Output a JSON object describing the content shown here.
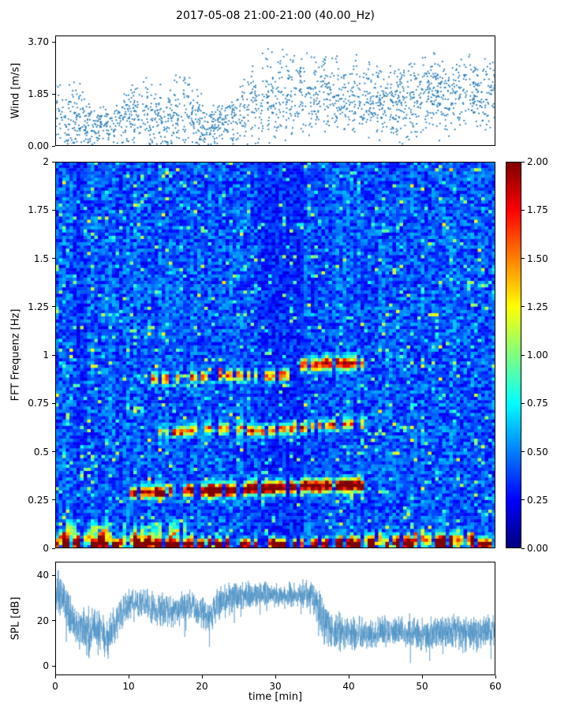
{
  "title": "2017-05-08 21:00-21:00 (40.00_Hz)",
  "chart_data": [
    {
      "type": "scatter",
      "name": "wind",
      "ylabel": "Wind [m/s]",
      "ylim": [
        0,
        3.93
      ],
      "xlim": [
        0,
        60
      ],
      "yticks": {
        "values": [
          0,
          1.85,
          3.7
        ],
        "labels": [
          "0.00",
          "1.85",
          "3.70"
        ]
      },
      "marker_color": "#1f77b4",
      "n_points": 1900,
      "trend": {
        "x": [
          0,
          3,
          6,
          9,
          12,
          15,
          18,
          21,
          24,
          27,
          30,
          33,
          36,
          39,
          42,
          45,
          48,
          51,
          54,
          57,
          60
        ],
        "mean": [
          1.1,
          1.0,
          0.7,
          0.8,
          1.3,
          1.0,
          1.2,
          0.7,
          0.8,
          1.5,
          1.8,
          1.9,
          2.0,
          1.8,
          1.7,
          1.5,
          1.6,
          1.8,
          1.7,
          1.9,
          1.8
        ],
        "spread": [
          0.8,
          0.9,
          0.5,
          0.6,
          1.0,
          0.8,
          1.1,
          0.5,
          0.6,
          1.1,
          1.2,
          1.1,
          1.0,
          1.0,
          1.0,
          0.9,
          1.0,
          1.0,
          1.0,
          1.0,
          1.0
        ]
      }
    },
    {
      "type": "heatmap",
      "name": "spectrogram",
      "ylabel": "FFT Frequenz [Hz]",
      "ylim": [
        0,
        2
      ],
      "xlim": [
        0,
        60
      ],
      "yticks": {
        "values": [
          0,
          0.25,
          0.5,
          0.75,
          1,
          1.25,
          1.5,
          1.75,
          2
        ],
        "labels": [
          "0",
          "0.25",
          "0.5",
          "0.75",
          "1",
          "1.25",
          "1.5",
          "1.75",
          "2"
        ]
      },
      "colormap": "jet",
      "value_range": [
        0,
        2
      ],
      "background": {
        "base": 0.22,
        "noise": 0.38,
        "speckle_chance": 0.055,
        "speckle_boost": 0.45
      },
      "dark_columns": [
        {
          "t": [
            27.5,
            34
          ],
          "factor": 0.78
        },
        {
          "t": [
            2.5,
            4.5
          ],
          "factor": 0.87
        }
      ],
      "bands": [
        {
          "t": [
            0,
            60
          ],
          "f": [
            0.02,
            0.02
          ],
          "amp": 1.9,
          "width": 0.02,
          "patchiness": 0.45
        },
        {
          "t": [
            0,
            13
          ],
          "f": [
            0.05,
            0.05
          ],
          "amp": 1.1,
          "width": 0.022,
          "patchiness": 0.4
        },
        {
          "t": [
            38,
            57
          ],
          "f": [
            0.035,
            0.05
          ],
          "amp": 1.1,
          "width": 0.022,
          "patchiness": 0.45
        },
        {
          "t": [
            0,
            18
          ],
          "f": [
            0.09,
            0.09
          ],
          "amp": 0.7,
          "width": 0.03,
          "patchiness": 0.5
        },
        {
          "t": [
            10,
            22
          ],
          "f": [
            0.285,
            0.3
          ],
          "amp": 1.8,
          "width": 0.02,
          "patchiness": 0.25
        },
        {
          "t": [
            21,
            42
          ],
          "f": [
            0.3,
            0.33
          ],
          "amp": 2.0,
          "width": 0.022,
          "patchiness": 0.08
        },
        {
          "t": [
            14,
            26
          ],
          "f": [
            0.6,
            0.62
          ],
          "amp": 1.0,
          "width": 0.018,
          "patchiness": 0.5
        },
        {
          "t": [
            26,
            42
          ],
          "f": [
            0.6,
            0.65
          ],
          "amp": 1.3,
          "width": 0.018,
          "patchiness": 0.3
        },
        {
          "t": [
            13,
            24
          ],
          "f": [
            0.875,
            0.895
          ],
          "amp": 1.1,
          "width": 0.02,
          "patchiness": 0.45
        },
        {
          "t": [
            24,
            33
          ],
          "f": [
            0.89,
            0.9
          ],
          "amp": 1.15,
          "width": 0.02,
          "patchiness": 0.4
        },
        {
          "t": [
            33,
            42
          ],
          "f": [
            0.95,
            0.96
          ],
          "amp": 1.5,
          "width": 0.022,
          "patchiness": 0.25
        }
      ],
      "colorbar": {
        "min": 0,
        "max": 2,
        "ticks": {
          "values": [
            0,
            0.25,
            0.5,
            0.75,
            1,
            1.25,
            1.5,
            1.75,
            2
          ],
          "labels": [
            "0.00",
            "0.25",
            "0.50",
            "0.75",
            "1.00",
            "1.25",
            "1.50",
            "1.75",
            "2.00"
          ]
        }
      }
    },
    {
      "type": "line",
      "name": "spl",
      "ylabel": "SPL [dB]",
      "xlabel": "time [min]",
      "ylim": [
        -4,
        46
      ],
      "xlim": [
        0,
        60
      ],
      "yticks": {
        "values": [
          0,
          20,
          40
        ],
        "labels": [
          "0",
          "20",
          "40"
        ]
      },
      "xticks": {
        "values": [
          0,
          10,
          20,
          30,
          40,
          50,
          60
        ],
        "labels": [
          "0",
          "10",
          "20",
          "30",
          "40",
          "50",
          "60"
        ]
      },
      "line_color": "#4a90c4",
      "trend": {
        "x": [
          0,
          1,
          2,
          3,
          4,
          5,
          6,
          7,
          8,
          9,
          10,
          12,
          14,
          16,
          18,
          20,
          21,
          22,
          24,
          26,
          28,
          30,
          32,
          34,
          35,
          36,
          37,
          38,
          40,
          42,
          44,
          46,
          48,
          50,
          52,
          54,
          56,
          58,
          60
        ],
        "mean": [
          34,
          30,
          22,
          17,
          16,
          15,
          14,
          12,
          18,
          24,
          27,
          27,
          25,
          24,
          27,
          24,
          21,
          27,
          30,
          31,
          32,
          31,
          31,
          32,
          30,
          25,
          18,
          15,
          15,
          14,
          15,
          16,
          15,
          14,
          15,
          16,
          15,
          14,
          16
        ],
        "spread": [
          6,
          6,
          6,
          6,
          7,
          7,
          7,
          7,
          6,
          5,
          5,
          5,
          5,
          5,
          5,
          5,
          5,
          5,
          5,
          4,
          4,
          4,
          4,
          4,
          5,
          6,
          6,
          6,
          5,
          5,
          5,
          5,
          5,
          5,
          5,
          5,
          5,
          5,
          5
        ]
      }
    }
  ]
}
